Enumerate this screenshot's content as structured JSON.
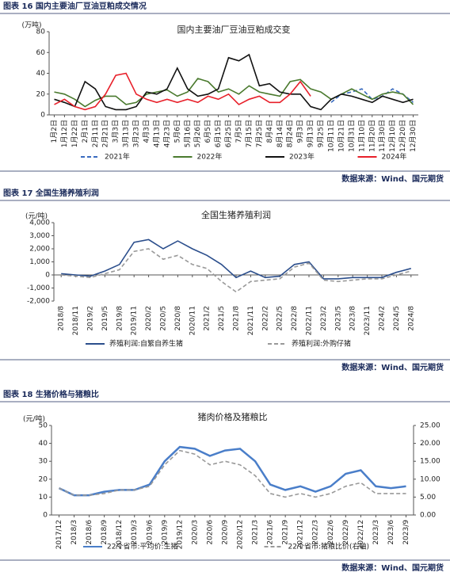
{
  "chart_data": [
    {
      "type": "line",
      "caption": "图表 16 国内主要油厂豆油豆粕成交情况",
      "title": "国内主要油厂豆油豆粕成交变",
      "y_label": "(万吨)",
      "source": "数据来源：Wind、国元期货",
      "categories": [
        "1月2日",
        "1月12日",
        "1月22日",
        "2月1日",
        "2月11日",
        "2月21日",
        "3月3日",
        "3月13日",
        "3月23日",
        "4月3日",
        "4月13日",
        "4月23日",
        "5月6日",
        "5月16日",
        "5月26日",
        "6月5日",
        "6月15日",
        "6月25日",
        "7月5日",
        "7月15日",
        "7月25日",
        "8月4日",
        "8月14日",
        "8月24日",
        "9月3日",
        "9月13日",
        "9月25日",
        "10月11日",
        "10月21日",
        "10月31日",
        "11月10日",
        "11月20日",
        "11月30日",
        "12月10日",
        "12月20日",
        "12月30日"
      ],
      "ylim": [
        0,
        80
      ],
      "yticks": [
        0,
        20,
        40,
        60,
        80
      ],
      "grid": false,
      "series": [
        {
          "name": "2021年",
          "color": "#3a6bbf",
          "dashed": true,
          "values": [
            null,
            null,
            null,
            null,
            null,
            null,
            null,
            null,
            null,
            null,
            null,
            null,
            null,
            null,
            null,
            null,
            null,
            null,
            null,
            null,
            null,
            null,
            null,
            null,
            null,
            null,
            null,
            12,
            20,
            22,
            25,
            15,
            18,
            25,
            20,
            12
          ]
        },
        {
          "name": "2022年",
          "color": "#4a7a2e",
          "values": [
            22,
            20,
            15,
            8,
            14,
            18,
            18,
            10,
            12,
            20,
            22,
            24,
            18,
            22,
            35,
            32,
            22,
            25,
            20,
            28,
            22,
            20,
            18,
            32,
            34,
            25,
            22,
            15,
            20,
            25,
            20,
            15,
            20,
            22,
            20,
            10
          ]
        },
        {
          "name": "2023年",
          "color": "#111111",
          "values": [
            15,
            12,
            8,
            32,
            25,
            8,
            5,
            5,
            8,
            22,
            20,
            25,
            45,
            25,
            18,
            20,
            25,
            55,
            52,
            58,
            28,
            30,
            22,
            20,
            20,
            8,
            5,
            15,
            20,
            18,
            15,
            12,
            18,
            15,
            12,
            15
          ]
        },
        {
          "name": "2024年",
          "color": "#e8202a",
          "values": [
            10,
            15,
            8,
            5,
            8,
            20,
            38,
            40,
            20,
            15,
            12,
            15,
            12,
            15,
            12,
            18,
            15,
            20,
            10,
            15,
            18,
            12,
            12,
            20,
            32,
            18,
            null,
            null,
            null,
            null,
            null,
            null,
            null,
            null,
            null,
            null
          ]
        }
      ]
    },
    {
      "type": "line",
      "caption": "图表 17 全国生猪养殖利润",
      "title": "全国生猪养殖利润",
      "y_label": "(元/吨)",
      "source": "数据来源：Wind、国元期货",
      "categories": [
        "2018/8",
        "2018/11",
        "2019/2",
        "2019/5",
        "2019/8",
        "2019/11",
        "2020/2",
        "2020/5",
        "2020/8",
        "2020/11",
        "2021/2",
        "2021/5",
        "2021/8",
        "2021/11",
        "2022/2",
        "2022/5",
        "2022/8",
        "2022/11",
        "2023/2",
        "2023/5",
        "2023/8",
        "2023/11",
        "2024/2",
        "2024/5",
        "2024/8"
      ],
      "ylim": [
        -2000,
        4000
      ],
      "yticks": [
        {
          "value": -2000,
          "label": "-2,000"
        },
        {
          "value": -1000,
          "label": "-1,000"
        },
        0,
        {
          "value": 1000,
          "label": "1,000"
        },
        {
          "value": 2000,
          "label": "2,000"
        },
        {
          "value": 3000,
          "label": "3,000"
        },
        {
          "value": 4000,
          "label": "4,000"
        }
      ],
      "grid": false,
      "series": [
        {
          "name": "养殖利润:自繁自养生猪",
          "color": "#2b4e8c",
          "values": [
            100,
            0,
            -100,
            300,
            800,
            2500,
            2700,
            2000,
            2600,
            2000,
            1500,
            800,
            -200,
            300,
            -200,
            -100,
            800,
            1000,
            -300,
            -300,
            -200,
            -200,
            -200,
            200,
            500
          ]
        },
        {
          "name": "养殖利润:外购仔猪",
          "color": "#999999",
          "dashed": true,
          "values": [
            0,
            -100,
            -200,
            100,
            400,
            1800,
            2000,
            1200,
            1500,
            800,
            500,
            -500,
            -1300,
            -500,
            -400,
            -300,
            600,
            900,
            -400,
            -500,
            -400,
            -300,
            -300,
            0,
            300
          ]
        }
      ]
    },
    {
      "type": "line",
      "caption": "图表 18 生猪价格与猪粮比",
      "title": "猪肉价格及猪粮比",
      "y_label": "(元/吨)",
      "source": "数据来源：Wind、国元期货",
      "categories": [
        "2017/12",
        "2018/3",
        "2018/6",
        "2018/9",
        "2018/12",
        "2019/3",
        "2019/6",
        "2019/9",
        "2019/12",
        "2020/3",
        "2020/6",
        "2020/9",
        "2020/12",
        "2021/3",
        "2021/6",
        "2021/9",
        "2021/12",
        "2022/3",
        "2022/6",
        "2022/9",
        "2022/12",
        "2023/3",
        "2023/6",
        "2023/9"
      ],
      "ylim": [
        0,
        50
      ],
      "yticks": [
        0,
        10,
        20,
        30,
        40,
        50
      ],
      "y2lim": [
        0,
        25
      ],
      "y2ticks": [
        {
          "value": 0,
          "label": "0.00"
        },
        {
          "value": 5,
          "label": "5.00"
        },
        {
          "value": 10,
          "label": "10.00"
        },
        {
          "value": 15,
          "label": "15.00"
        },
        {
          "value": 20,
          "label": "20.00"
        },
        {
          "value": 25,
          "label": "25.00"
        }
      ],
      "grid": false,
      "series": [
        {
          "name": "22个省市:平均价:生猪",
          "color": "#4a7ec9",
          "width": 2.5,
          "values": [
            15,
            11,
            11,
            13,
            14,
            14,
            17,
            30,
            38,
            37,
            33,
            36,
            37,
            30,
            17,
            14,
            16,
            13,
            16,
            23,
            25,
            16,
            15,
            16
          ]
        },
        {
          "name": "22个省市:猪粮比价(右轴)",
          "color": "#999999",
          "dashed": true,
          "axis": "y2",
          "values": [
            7.5,
            5.5,
            5.5,
            6,
            7,
            7,
            8,
            14,
            18,
            17,
            14,
            15,
            14,
            11,
            6,
            5,
            6,
            5,
            6,
            8,
            9,
            6,
            6,
            6
          ]
        }
      ]
    }
  ]
}
